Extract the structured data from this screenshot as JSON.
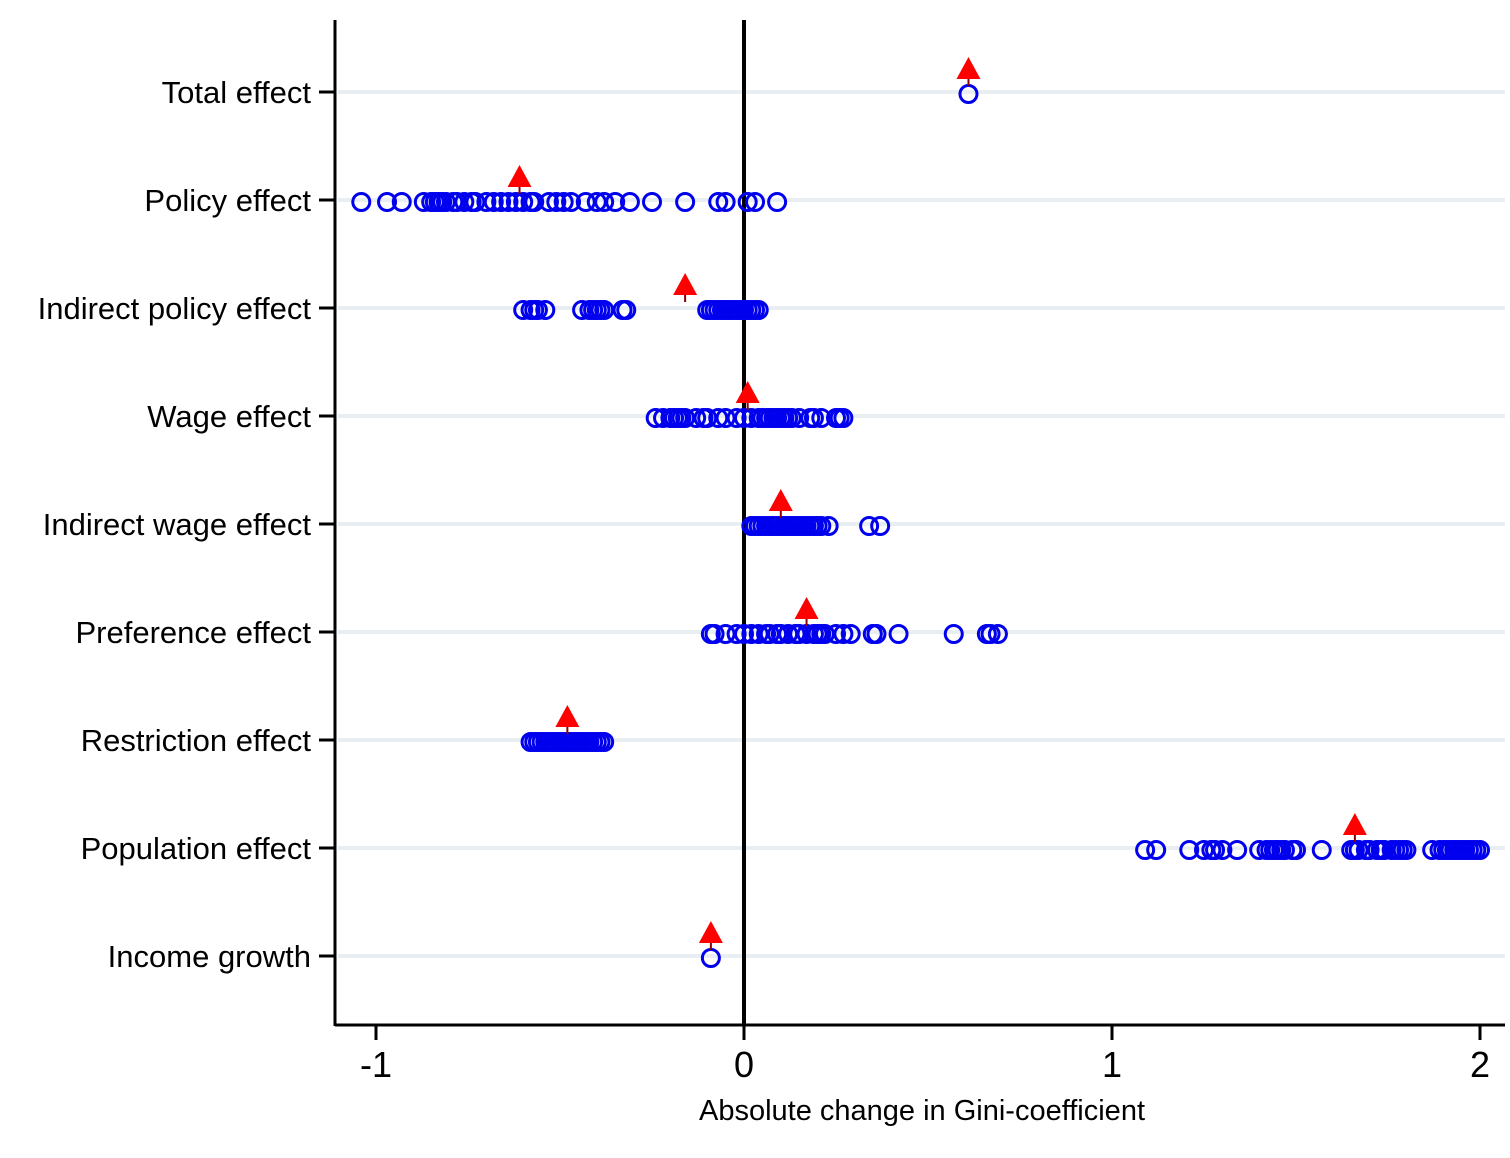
{
  "chart_data": {
    "type": "scatter",
    "title": "",
    "xlabel": "Absolute change in Gini-coefficient",
    "ylabel": "",
    "xlim": [
      -1.1,
      2.05
    ],
    "xticks": [
      -1,
      0,
      1,
      2
    ],
    "xtick_labels": [
      "-1",
      "0",
      "1",
      "2"
    ],
    "reference_line_x": 0,
    "grid": "horizontal lines at each category",
    "legend": "none",
    "colors": {
      "circles": "#0000ee",
      "triangles": "#ff0000",
      "grid": "#e8eef2",
      "axis": "#000000"
    },
    "categories": [
      "Total effect",
      "Policy effect",
      "Indirect policy effect",
      "Wage effect",
      "Indirect wage effect",
      "Preference effect",
      "Restriction effect",
      "Population effect",
      "Income growth"
    ],
    "series": [
      {
        "marker": "hollow-circle",
        "color": "#0000ee",
        "values": [
          [
            0.61
          ],
          [
            -1.04,
            -0.97,
            -0.93,
            -0.87,
            -0.85,
            -0.84,
            -0.83,
            -0.82,
            -0.81,
            -0.79,
            -0.78,
            -0.76,
            -0.74,
            -0.73,
            -0.7,
            -0.68,
            -0.66,
            -0.64,
            -0.62,
            -0.6,
            -0.58,
            -0.57,
            -0.53,
            -0.51,
            -0.49,
            -0.47,
            -0.43,
            -0.4,
            -0.38,
            -0.35,
            -0.31,
            -0.25,
            -0.16,
            -0.07,
            -0.05,
            0.01,
            0.03,
            0.09
          ],
          [
            -0.6,
            -0.58,
            -0.57,
            -0.56,
            -0.54,
            -0.44,
            -0.42,
            -0.41,
            -0.4,
            -0.39,
            -0.38,
            -0.33,
            -0.32,
            -0.1,
            -0.09,
            -0.08,
            -0.07,
            -0.06,
            -0.05,
            -0.04,
            -0.03,
            -0.02,
            -0.01,
            0.0,
            0.01,
            0.02,
            0.03,
            0.04
          ],
          [
            -0.24,
            -0.22,
            -0.2,
            -0.19,
            -0.18,
            -0.17,
            -0.16,
            -0.13,
            -0.11,
            -0.1,
            -0.07,
            -0.05,
            -0.02,
            0.0,
            0.02,
            0.04,
            0.05,
            0.06,
            0.07,
            0.08,
            0.09,
            0.1,
            0.11,
            0.12,
            0.13,
            0.15,
            0.18,
            0.19,
            0.21,
            0.25,
            0.26,
            0.27
          ],
          [
            0.02,
            0.03,
            0.04,
            0.05,
            0.06,
            0.07,
            0.08,
            0.09,
            0.1,
            0.11,
            0.12,
            0.13,
            0.14,
            0.15,
            0.16,
            0.17,
            0.18,
            0.19,
            0.2,
            0.21,
            0.23,
            0.34,
            0.37
          ],
          [
            -0.09,
            -0.08,
            -0.05,
            -0.02,
            0.0,
            0.02,
            0.04,
            0.06,
            0.07,
            0.09,
            0.1,
            0.12,
            0.14,
            0.15,
            0.17,
            0.19,
            0.2,
            0.21,
            0.22,
            0.25,
            0.27,
            0.29,
            0.35,
            0.36,
            0.42,
            0.57,
            0.66,
            0.67,
            0.69
          ],
          [
            -0.58,
            -0.57,
            -0.56,
            -0.55,
            -0.54,
            -0.53,
            -0.52,
            -0.51,
            -0.5,
            -0.49,
            -0.48,
            -0.47,
            -0.46,
            -0.45,
            -0.44,
            -0.43,
            -0.42,
            -0.41,
            -0.4,
            -0.39,
            -0.38
          ],
          [
            1.09,
            1.12,
            1.21,
            1.25,
            1.27,
            1.28,
            1.3,
            1.34,
            1.4,
            1.42,
            1.43,
            1.44,
            1.45,
            1.46,
            1.47,
            1.49,
            1.5,
            1.57,
            1.65,
            1.66,
            1.67,
            1.69,
            1.7,
            1.72,
            1.73,
            1.74,
            1.76,
            1.77,
            1.78,
            1.79,
            1.8,
            1.87,
            1.89,
            1.9,
            1.91,
            1.92,
            1.93,
            1.94,
            1.95,
            1.96,
            1.97,
            1.98,
            1.99,
            2.0
          ],
          [
            -0.09
          ]
        ]
      },
      {
        "marker": "filled-triangle",
        "color": "#ff0000",
        "values": [
          0.61,
          -0.61,
          -0.16,
          0.01,
          0.1,
          0.17,
          -0.48,
          1.66,
          -0.09
        ]
      }
    ]
  }
}
